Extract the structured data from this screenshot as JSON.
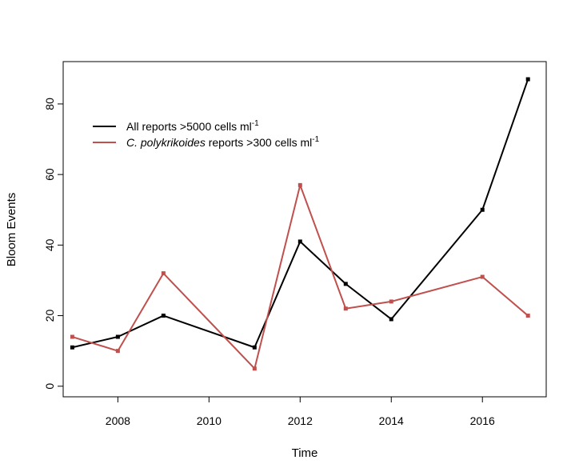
{
  "chart_data": {
    "type": "line",
    "title": "",
    "xlabel": "Time",
    "ylabel": "Bloom Events",
    "xlim": [
      2006.8,
      2017.4
    ],
    "ylim": [
      -3,
      92
    ],
    "xticks": [
      2008,
      2010,
      2012,
      2014,
      2016
    ],
    "xtick_labels": [
      "2008",
      "2010",
      "2012",
      "2014",
      "2016"
    ],
    "yticks": [
      0,
      20,
      40,
      60,
      80
    ],
    "ytick_labels": [
      "0",
      "20",
      "40",
      "60",
      "80"
    ],
    "grid": false,
    "legend_position": "top-left",
    "series": [
      {
        "legend": {
          "main": "All reports >5000 cells ml",
          "sup": "-1"
        },
        "color": "#000000",
        "x": [
          2007,
          2008,
          2009,
          2011,
          2012,
          2013,
          2014,
          2016,
          2017
        ],
        "values": [
          11,
          14,
          20,
          11,
          41,
          29,
          19,
          50,
          87
        ]
      },
      {
        "legend": {
          "italic": "C. polykrikoides",
          "main": " reports >300 cells ml",
          "sup": "-1"
        },
        "color": "#c0504d",
        "x": [
          2007,
          2008,
          2009,
          2011,
          2012,
          2013,
          2014,
          2016,
          2017
        ],
        "values": [
          14,
          10,
          32,
          5,
          57,
          22,
          24,
          31,
          20
        ]
      }
    ]
  }
}
